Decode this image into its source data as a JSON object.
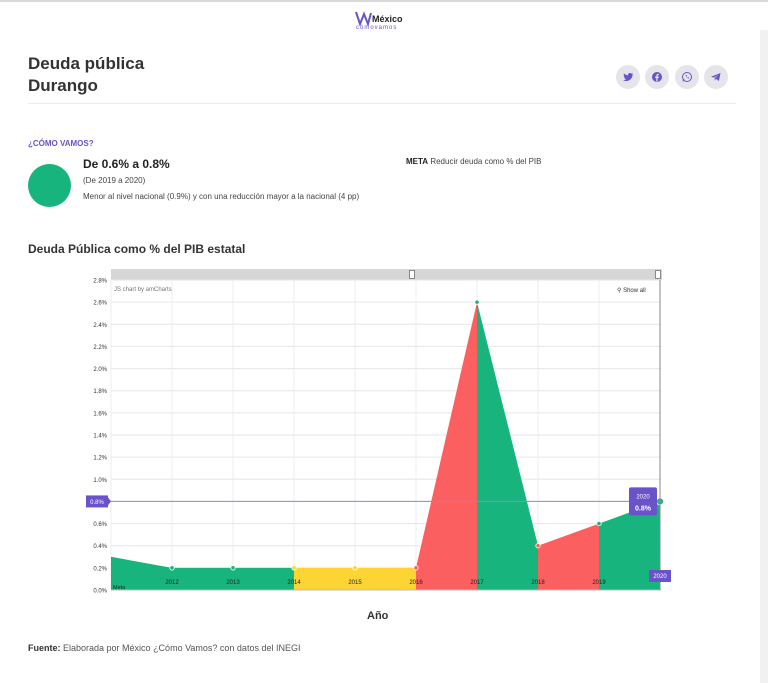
{
  "logo": {
    "main": "México",
    "sub": "cómovamos"
  },
  "header": {
    "title_line1": "Deuda pública",
    "title_line2": "Durango"
  },
  "share": [
    {
      "name": "twitter-button",
      "icon": "twitter-icon"
    },
    {
      "name": "facebook-button",
      "icon": "facebook-icon"
    },
    {
      "name": "whatsapp-button",
      "icon": "whatsapp-icon"
    },
    {
      "name": "telegram-button",
      "icon": "telegram-icon"
    }
  ],
  "summary": {
    "section_label": "¿CÓMO VAMOS?",
    "status_color": "#18b47d",
    "range": "De 0.6% a 0.8%",
    "period": "(De 2019 a 2020)",
    "comparison": "Menor al nivel nacional (0.9%) y con una reducción mayor a la nacional (4 pp)",
    "meta_label": "META",
    "meta_text": "Reducir deuda como % del PIB"
  },
  "chart_title": "Deuda Pública como % del PIB estatal",
  "chart_data": {
    "type": "area",
    "x_categories": [
      "2011",
      "2012",
      "2013",
      "2014",
      "2015",
      "2016",
      "2017",
      "2018",
      "2019",
      "2020"
    ],
    "tick_labels": [
      "2012",
      "2013",
      "2014",
      "2015",
      "2016",
      "2017",
      "2018",
      "2019"
    ],
    "values": [
      0.3,
      0.2,
      0.2,
      0.2,
      0.2,
      0.2,
      2.6,
      0.4,
      0.6,
      0.8
    ],
    "segment_colors": [
      "#18b47d",
      "#18b47d",
      "#18b47d",
      "#fcd535",
      "#fcd535",
      "#fc5f5f",
      "#18b47d",
      "#fc5f5f",
      "#18b47d"
    ],
    "ylim": [
      0,
      2.8
    ],
    "yticks": [
      "0.0%",
      "0.2%",
      "0.4%",
      "0.6%",
      "0.8%",
      "1.0%",
      "1.2%",
      "1.4%",
      "1.6%",
      "1.8%",
      "2.0%",
      "2.2%",
      "2.4%",
      "2.6%",
      "2.8%"
    ],
    "meta_line_value": 0.8,
    "meta_line_label": "0.8%",
    "meta_axis_label": "Meta",
    "tooltip": {
      "year": "2020",
      "value": "0.8%"
    },
    "cursor_label": "2020",
    "xlabel": "Año",
    "credit": "JS chart by amCharts",
    "show_all": "Show all",
    "grid": true
  },
  "source": {
    "label": "Fuente:",
    "text": "Elaborada por México ¿Cómo Vamos? con datos del INEGI"
  }
}
